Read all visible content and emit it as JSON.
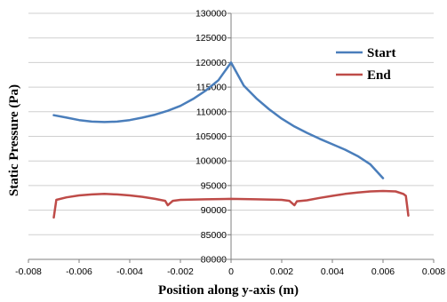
{
  "chart_data": {
    "type": "line",
    "xlabel": "Position along y-axis (m)",
    "ylabel": "Static Pressure (Pa)",
    "xlim": [
      -0.008,
      0.008
    ],
    "ylim": [
      80000,
      130000
    ],
    "x_ticks": [
      -0.008,
      -0.006,
      -0.004,
      -0.002,
      0,
      0.002,
      0.004,
      0.006,
      0.008
    ],
    "x_tick_labels": [
      "-0.008",
      "-0.006",
      "-0.004",
      "-0.002",
      "0",
      "0.002",
      "0.004",
      "0.006",
      "0.008"
    ],
    "y_ticks": [
      80000,
      85000,
      90000,
      95000,
      100000,
      105000,
      110000,
      115000,
      120000,
      125000,
      130000
    ],
    "y_tick_labels": [
      "80000",
      "85000",
      "90000",
      "95000",
      "100000",
      "105000",
      "110000",
      "115000",
      "120000",
      "125000",
      "130000"
    ],
    "grid": "horizontal",
    "legend_position": "top-right",
    "series": [
      {
        "name": "Start",
        "color": "#4a7ebb",
        "x": [
          -0.007,
          -0.0065,
          -0.006,
          -0.0055,
          -0.005,
          -0.0045,
          -0.004,
          -0.0035,
          -0.003,
          -0.0025,
          -0.002,
          -0.0015,
          -0.001,
          -0.0005,
          0,
          0.0005,
          0.001,
          0.0015,
          0.002,
          0.0025,
          0.003,
          0.0035,
          0.004,
          0.0045,
          0.005,
          0.0055,
          0.006
        ],
        "y": [
          109300,
          108800,
          108300,
          108000,
          107900,
          108000,
          108300,
          108800,
          109400,
          110200,
          111200,
          112600,
          114300,
          116400,
          120000,
          115300,
          112700,
          110500,
          108600,
          107000,
          105700,
          104500,
          103400,
          102300,
          101000,
          99300,
          96500
        ]
      },
      {
        "name": "End",
        "color": "#be4b48",
        "x": [
          -0.007,
          -0.0069,
          -0.0065,
          -0.006,
          -0.0055,
          -0.005,
          -0.0045,
          -0.004,
          -0.0035,
          -0.003,
          -0.0026,
          -0.0025,
          -0.0023,
          -0.002,
          -0.001,
          0,
          0.001,
          0.002,
          0.0023,
          0.0025,
          0.0026,
          0.003,
          0.0035,
          0.004,
          0.0045,
          0.005,
          0.0055,
          0.006,
          0.0065,
          0.0068,
          0.0069,
          0.007
        ],
        "y": [
          88500,
          92100,
          92600,
          93000,
          93200,
          93300,
          93200,
          93000,
          92700,
          92300,
          91900,
          91000,
          91900,
          92100,
          92200,
          92300,
          92200,
          92100,
          91900,
          91000,
          91800,
          92000,
          92500,
          92900,
          93300,
          93600,
          93800,
          93900,
          93800,
          93300,
          92900,
          88900
        ]
      }
    ]
  }
}
